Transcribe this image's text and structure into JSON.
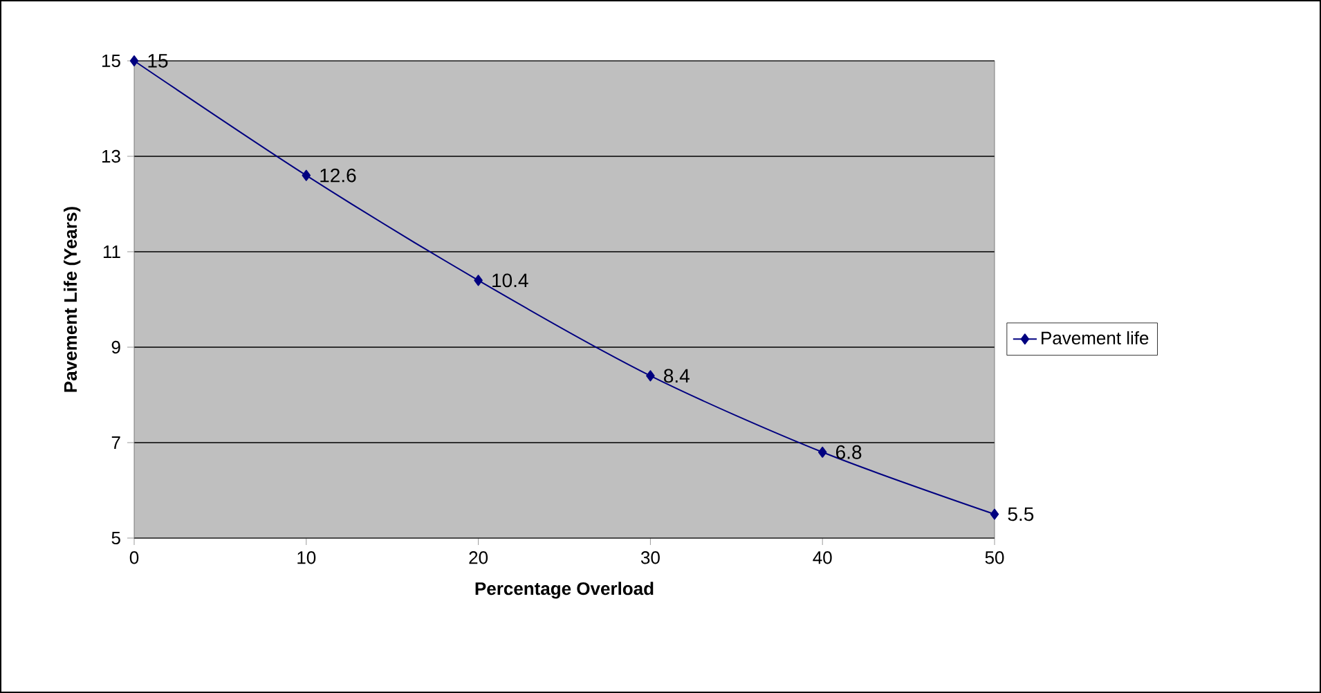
{
  "chart_data": {
    "type": "line",
    "xlabel": "Percentage Overload",
    "ylabel": "Pavement Life (Years)",
    "x": [
      0,
      10,
      20,
      30,
      40,
      50
    ],
    "series": [
      {
        "name": "Pavement life",
        "color": "#000080",
        "values": [
          15,
          12.6,
          10.4,
          8.4,
          6.8,
          5.5
        ]
      }
    ],
    "xlim": [
      0,
      50
    ],
    "ylim": [
      5,
      15
    ],
    "xticks": [
      0,
      10,
      20,
      30,
      40,
      50
    ],
    "yticks": [
      5,
      7,
      9,
      11,
      13,
      15
    ],
    "grid": "y",
    "legend": "right",
    "marker": "diamond",
    "line_style": "solid",
    "data_labels": true
  }
}
